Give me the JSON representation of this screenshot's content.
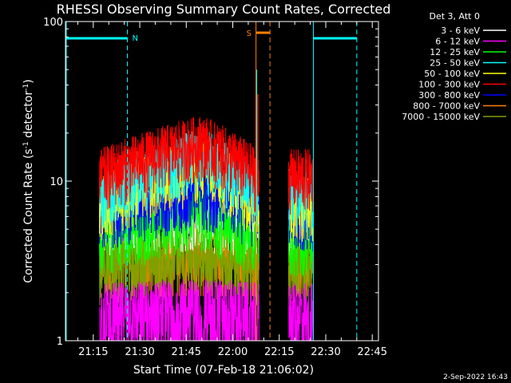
{
  "chart_data": {
    "type": "line",
    "title": "RHESSI Observing Summary Count Rates, Corrected",
    "xlabel": "Start Time (07-Feb-18 21:06:02)",
    "ylabel": "Corrected Count Rate (s",
    "ylabel_sup1": "-1",
    "ylabel_mid": " detector",
    "ylabel_sup2": "-1",
    "ylabel_end": ")",
    "y_scale": "log",
    "ylim": [
      1,
      100
    ],
    "xlim": [
      "21:06:02",
      "22:47:00"
    ],
    "x_ticks": [
      "21:15",
      "21:30",
      "21:45",
      "22:00",
      "22:15",
      "22:30",
      "22:45"
    ],
    "y_ticks": [
      "1",
      "10",
      "100"
    ],
    "legend_header": "Det 3, Att 0",
    "date_stamp": "2-Sep-2022 16:43",
    "annotations": [
      {
        "label": "N",
        "color": "#00ffff",
        "from": "21:06:02",
        "to": "21:26:00"
      },
      {
        "label": "S",
        "color": "#ff8000",
        "from": "22:07:30",
        "to": "22:12:00"
      }
    ],
    "data_gaps": [
      [
        "22:08:30",
        "22:18:00"
      ],
      [
        "22:26:00",
        "22:40:00"
      ]
    ],
    "series": [
      {
        "name": "3 - 6 keV",
        "color": "#ffffff",
        "level": [
          6.2,
          6.4,
          6.0
        ]
      },
      {
        "name": "6 - 12 keV",
        "color": "#ff00ff",
        "level": [
          1.6,
          1.7,
          1.6
        ]
      },
      {
        "name": "12 - 25 keV",
        "color": "#00ff00",
        "level": [
          4.5,
          6.5,
          4.5
        ]
      },
      {
        "name": "25 - 50 keV",
        "color": "#00ffff",
        "level": [
          8.5,
          15,
          8.5
        ]
      },
      {
        "name": "50 - 100 keV",
        "color": "#ffff00",
        "level": [
          7.5,
          13,
          7.5
        ]
      },
      {
        "name": "100 - 300 keV",
        "color": "#ff0000",
        "level": [
          11,
          18,
          11
        ]
      },
      {
        "name": "300 - 800 keV",
        "color": "#0000ff",
        "level": [
          6.5,
          9,
          6.5
        ]
      },
      {
        "name": "800 - 7000 keV",
        "color": "#ff8000",
        "level": [
          3.6,
          4.2,
          3.6
        ]
      },
      {
        "name": "7000 - 15000 keV",
        "color": "#80a000",
        "level": [
          3.0,
          3.4,
          3.0
        ]
      }
    ]
  }
}
